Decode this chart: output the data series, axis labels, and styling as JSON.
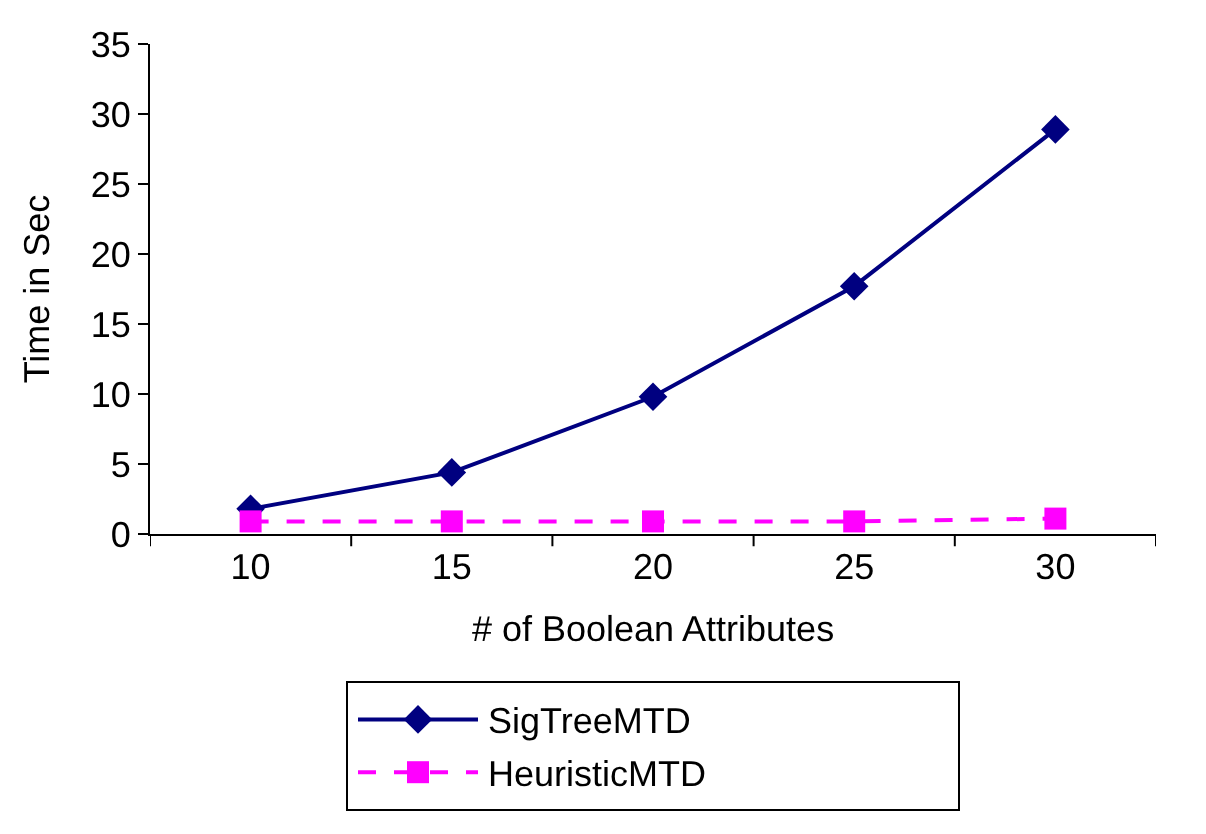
{
  "chart_data": {
    "type": "line",
    "xlabel": "# of Boolean Attributes",
    "ylabel": "Time in Sec",
    "categories": [
      "10",
      "15",
      "20",
      "25",
      "30"
    ],
    "series": [
      {
        "name": "SigTreeMTD",
        "color": "#000080",
        "values": [
          1.8,
          4.4,
          9.8,
          17.7,
          28.9
        ],
        "marker": "diamond",
        "line_style": "solid"
      },
      {
        "name": "HeuristicMTD",
        "color": "#ff00ff",
        "values": [
          0.9,
          0.9,
          0.9,
          0.9,
          1.1
        ],
        "marker": "square",
        "line_style": "dashed"
      }
    ],
    "ylim": [
      0,
      35
    ],
    "yticks": [
      0,
      5,
      10,
      15,
      20,
      25,
      30,
      35
    ],
    "grid": false,
    "legend": "bottom"
  }
}
